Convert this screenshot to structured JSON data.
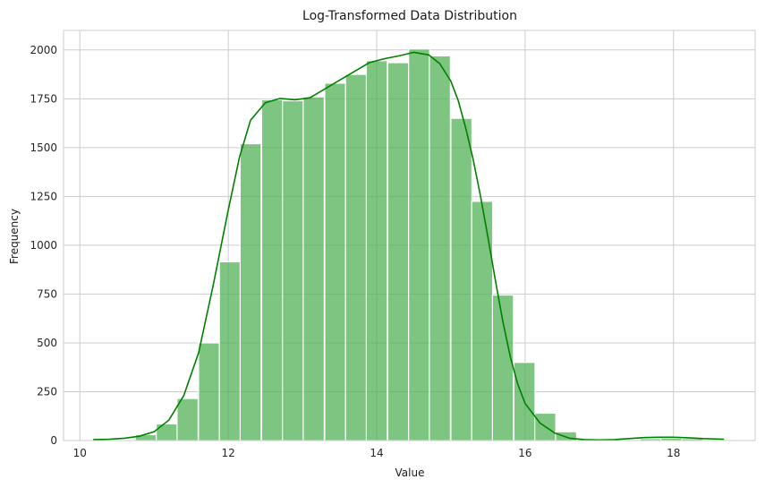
{
  "chart_data": {
    "type": "bar",
    "subtype": "histogram-with-kde",
    "title": "Log-Transformed Data Distribution",
    "xlabel": "Value",
    "ylabel": "Frequency",
    "xlim": [
      9.78,
      19.1
    ],
    "ylim": [
      0,
      2100
    ],
    "xticks": [
      10,
      12,
      14,
      16,
      18
    ],
    "yticks": [
      0,
      250,
      500,
      750,
      1000,
      1250,
      1500,
      1750,
      2000
    ],
    "grid": true,
    "bar_color": "#4caf50",
    "bar_opacity": 0.72,
    "bar_edge_color": "#ffffff",
    "kde_color": "#008000",
    "bin_width": 0.283,
    "bins": [
      {
        "x0": 10.18,
        "value": 3
      },
      {
        "x0": 10.46,
        "value": 5
      },
      {
        "x0": 10.75,
        "value": 30
      },
      {
        "x0": 11.03,
        "value": 85
      },
      {
        "x0": 11.31,
        "value": 215
      },
      {
        "x0": 11.6,
        "value": 500
      },
      {
        "x0": 11.88,
        "value": 915
      },
      {
        "x0": 12.16,
        "value": 1520
      },
      {
        "x0": 12.45,
        "value": 1745
      },
      {
        "x0": 12.73,
        "value": 1740
      },
      {
        "x0": 13.01,
        "value": 1760
      },
      {
        "x0": 13.3,
        "value": 1830
      },
      {
        "x0": 13.58,
        "value": 1875
      },
      {
        "x0": 13.86,
        "value": 1945
      },
      {
        "x0": 14.15,
        "value": 1935
      },
      {
        "x0": 14.43,
        "value": 2005
      },
      {
        "x0": 14.71,
        "value": 1970
      },
      {
        "x0": 15.0,
        "value": 1650
      },
      {
        "x0": 15.28,
        "value": 1225
      },
      {
        "x0": 15.56,
        "value": 745
      },
      {
        "x0": 15.85,
        "value": 400
      },
      {
        "x0": 16.13,
        "value": 140
      },
      {
        "x0": 16.41,
        "value": 45
      },
      {
        "x0": 16.7,
        "value": 5
      },
      {
        "x0": 16.98,
        "value": 2
      },
      {
        "x0": 17.26,
        "value": 3
      },
      {
        "x0": 17.55,
        "value": 10
      },
      {
        "x0": 17.83,
        "value": 12
      },
      {
        "x0": 18.11,
        "value": 10
      },
      {
        "x0": 18.4,
        "value": 5
      }
    ],
    "kde": [
      [
        10.18,
        5
      ],
      [
        10.4,
        7
      ],
      [
        10.6,
        12
      ],
      [
        10.8,
        22
      ],
      [
        11.0,
        45
      ],
      [
        11.2,
        105
      ],
      [
        11.4,
        230
      ],
      [
        11.6,
        450
      ],
      [
        11.8,
        800
      ],
      [
        12.0,
        1180
      ],
      [
        12.15,
        1450
      ],
      [
        12.3,
        1640
      ],
      [
        12.5,
        1730
      ],
      [
        12.7,
        1752
      ],
      [
        12.9,
        1745
      ],
      [
        13.1,
        1755
      ],
      [
        13.3,
        1800
      ],
      [
        13.5,
        1845
      ],
      [
        13.7,
        1890
      ],
      [
        13.9,
        1935
      ],
      [
        14.1,
        1955
      ],
      [
        14.3,
        1970
      ],
      [
        14.5,
        1988
      ],
      [
        14.7,
        1975
      ],
      [
        14.85,
        1930
      ],
      [
        15.0,
        1840
      ],
      [
        15.1,
        1740
      ],
      [
        15.2,
        1600
      ],
      [
        15.3,
        1440
      ],
      [
        15.4,
        1250
      ],
      [
        15.5,
        1040
      ],
      [
        15.6,
        820
      ],
      [
        15.7,
        610
      ],
      [
        15.8,
        430
      ],
      [
        15.9,
        290
      ],
      [
        16.0,
        190
      ],
      [
        16.2,
        90
      ],
      [
        16.4,
        38
      ],
      [
        16.6,
        12
      ],
      [
        16.8,
        5
      ],
      [
        17.0,
        3
      ],
      [
        17.2,
        5
      ],
      [
        17.4,
        10
      ],
      [
        17.6,
        15
      ],
      [
        17.8,
        17
      ],
      [
        18.0,
        17
      ],
      [
        18.2,
        14
      ],
      [
        18.4,
        10
      ],
      [
        18.68,
        7
      ]
    ]
  }
}
